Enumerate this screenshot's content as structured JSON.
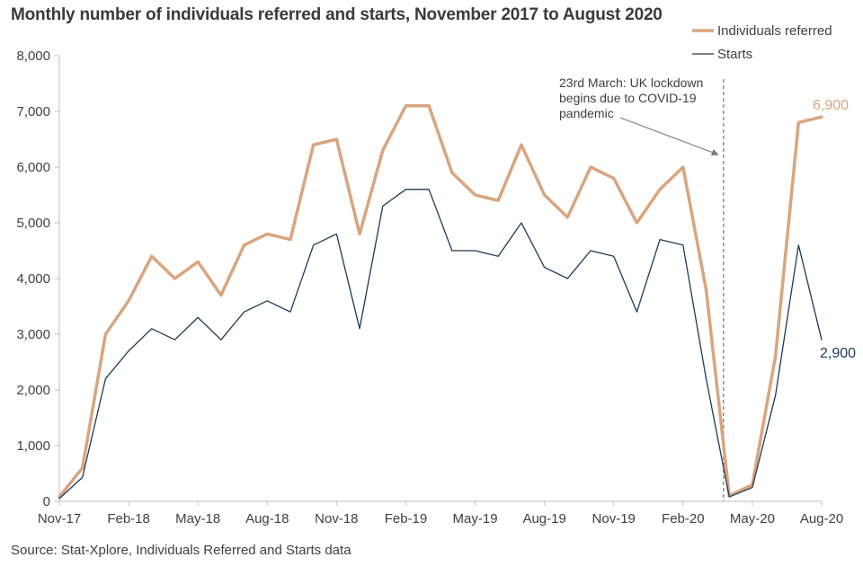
{
  "chart_data": {
    "type": "line",
    "title": "Monthly number of individuals referred and starts, November 2017 to August 2020",
    "source": "Source: Stat-Xplore, Individuals  Referred and Starts data",
    "categories": [
      "Nov-17",
      "Dec-17",
      "Jan-18",
      "Feb-18",
      "Mar-18",
      "Apr-18",
      "May-18",
      "Jun-18",
      "Jul-18",
      "Aug-18",
      "Sep-18",
      "Oct-18",
      "Nov-18",
      "Dec-18",
      "Jan-19",
      "Feb-19",
      "Mar-19",
      "Apr-19",
      "May-19",
      "Jun-19",
      "Jul-19",
      "Aug-19",
      "Sep-19",
      "Oct-19",
      "Nov-19",
      "Dec-19",
      "Jan-20",
      "Feb-20",
      "Mar-20",
      "Apr-20",
      "May-20",
      "Jun-20",
      "Jul-20",
      "Aug-20"
    ],
    "x_tick_labels": [
      "Nov-17",
      "Feb-18",
      "May-18",
      "Aug-18",
      "Nov-18",
      "Feb-19",
      "May-19",
      "Aug-19",
      "Nov-19",
      "Feb-20",
      "May-20",
      "Aug-20"
    ],
    "x_tick_indices": [
      0,
      3,
      6,
      9,
      12,
      15,
      18,
      21,
      24,
      27,
      30,
      33
    ],
    "y_ticks": [
      0,
      1000,
      2000,
      3000,
      4000,
      5000,
      6000,
      7000,
      8000
    ],
    "y_tick_labels": [
      "0",
      "1,000",
      "2,000",
      "3,000",
      "4,000",
      "5,000",
      "6,000",
      "7,000",
      "8,000"
    ],
    "ylim": [
      0,
      8000
    ],
    "series": [
      {
        "name": "Individuals referred",
        "color": "#d9a57f",
        "values": [
          80,
          600,
          3000,
          3600,
          4400,
          4000,
          4300,
          3700,
          4600,
          4800,
          4700,
          6400,
          6500,
          4800,
          6300,
          7100,
          7100,
          5900,
          5500,
          5400,
          6400,
          5500,
          5100,
          6000,
          5800,
          5000,
          5600,
          6000,
          3800,
          100,
          300,
          2600,
          6800,
          6900
        ],
        "end_label": "6,900"
      },
      {
        "name": "Starts",
        "color": "#1d3a55",
        "values": [
          50,
          430,
          2200,
          2700,
          3100,
          2900,
          3300,
          2900,
          3400,
          3600,
          3400,
          4600,
          4800,
          3100,
          5300,
          5600,
          5600,
          4500,
          4500,
          4400,
          5000,
          4200,
          4000,
          4500,
          4400,
          3400,
          4700,
          4600,
          2200,
          80,
          250,
          1900,
          4600,
          2900
        ],
        "end_label": "2,900"
      }
    ],
    "annotation": {
      "lines": [
        "23rd March: UK lockdown",
        "begins due to COVID-19",
        "pandemic"
      ],
      "at_index": 28.75
    }
  }
}
